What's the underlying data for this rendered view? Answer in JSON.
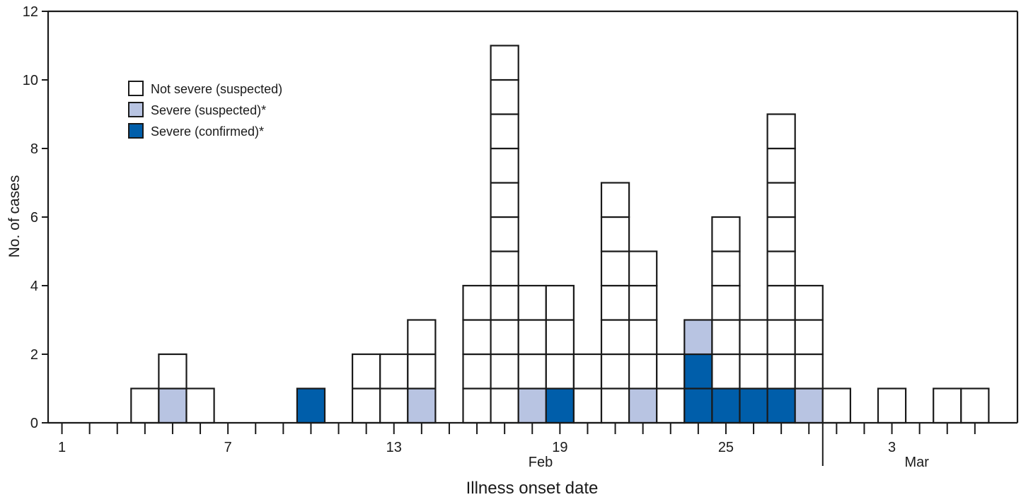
{
  "chart_data": {
    "type": "bar",
    "subtype": "stacked-epicurve",
    "xlabel": "Illness onset date",
    "ylabel": "No. of cases",
    "ylim": [
      0,
      12
    ],
    "yticks": [
      0,
      2,
      4,
      6,
      8,
      10,
      12
    ],
    "x_tick_labels": [
      {
        "day": 1,
        "label": "1"
      },
      {
        "day": 7,
        "label": "7"
      },
      {
        "day": 13,
        "label": "13"
      },
      {
        "day": 19,
        "label": "19"
      },
      {
        "day": 25,
        "label": "25"
      },
      {
        "day": 31,
        "label": "3"
      }
    ],
    "month_labels": [
      {
        "label": "Feb"
      },
      {
        "label": "Mar"
      }
    ],
    "days": 34,
    "legend": {
      "position": "top-left",
      "entries": [
        {
          "key": "not_severe_suspected",
          "label": "Not severe (suspected)",
          "color": "#ffffff"
        },
        {
          "key": "severe_suspected",
          "label": "Severe (suspected)*",
          "color": "#b8c4e2"
        },
        {
          "key": "severe_confirmed",
          "label": "Severe (confirmed)*",
          "color": "#005eaa"
        }
      ]
    },
    "x": [
      "Feb 1",
      "Feb 2",
      "Feb 3",
      "Feb 4",
      "Feb 5",
      "Feb 6",
      "Feb 7",
      "Feb 8",
      "Feb 9",
      "Feb 10",
      "Feb 11",
      "Feb 12",
      "Feb 13",
      "Feb 14",
      "Feb 15",
      "Feb 16",
      "Feb 17",
      "Feb 18",
      "Feb 19",
      "Feb 20",
      "Feb 21",
      "Feb 22",
      "Feb 23",
      "Feb 24",
      "Feb 25",
      "Feb 26",
      "Feb 27",
      "Feb 28",
      "Mar 1",
      "Mar 2",
      "Mar 3",
      "Mar 4",
      "Mar 5",
      "Mar 6"
    ],
    "series": [
      {
        "key": "severe_confirmed",
        "values": [
          0,
          0,
          0,
          0,
          0,
          0,
          0,
          0,
          0,
          1,
          0,
          0,
          0,
          0,
          0,
          0,
          0,
          0,
          1,
          0,
          0,
          0,
          0,
          2,
          1,
          1,
          1,
          0,
          0,
          0,
          0,
          0,
          0,
          0
        ]
      },
      {
        "key": "severe_suspected",
        "values": [
          0,
          0,
          0,
          0,
          1,
          0,
          0,
          0,
          0,
          0,
          0,
          0,
          0,
          1,
          0,
          0,
          0,
          1,
          0,
          0,
          0,
          1,
          0,
          1,
          0,
          0,
          0,
          1,
          0,
          0,
          0,
          0,
          0,
          0
        ]
      },
      {
        "key": "not_severe_suspected",
        "values": [
          0,
          0,
          0,
          1,
          1,
          1,
          0,
          0,
          0,
          0,
          0,
          2,
          2,
          2,
          0,
          4,
          11,
          3,
          3,
          2,
          7,
          4,
          2,
          0,
          5,
          2,
          8,
          3,
          1,
          0,
          1,
          0,
          1,
          1
        ]
      }
    ]
  }
}
